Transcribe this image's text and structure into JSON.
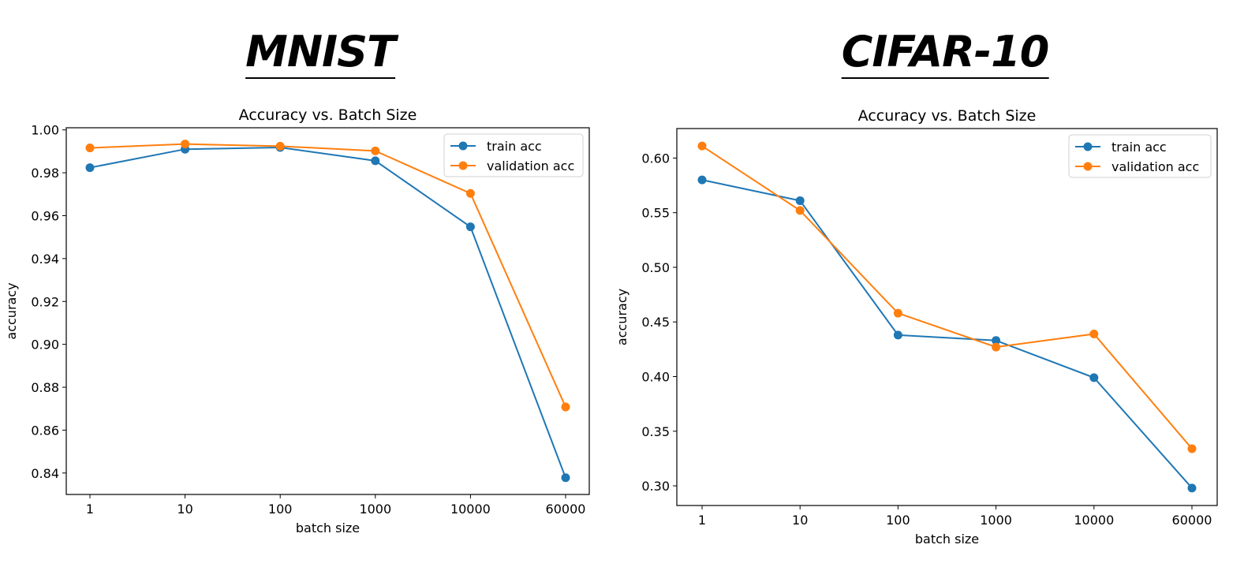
{
  "panel_titles": [
    "MNIST",
    "CIFAR-10"
  ],
  "colors": {
    "train": "#1f77b4",
    "validation": "#ff7f0e"
  },
  "chart_data": [
    {
      "type": "line",
      "title": "Accuracy vs. Batch Size",
      "xlabel": "batch size",
      "ylabel": "accuracy",
      "categories": [
        "1",
        "10",
        "100",
        "1000",
        "10000",
        "60000"
      ],
      "yticks": [
        "0.84",
        "0.86",
        "0.88",
        "0.90",
        "0.92",
        "0.94",
        "0.96",
        "0.98",
        "1.00"
      ],
      "ylim": [
        0.83,
        1.001
      ],
      "legend_position": "top-right",
      "grid": false,
      "series": [
        {
          "name": "train acc",
          "values": [
            0.9824,
            0.991,
            0.9918,
            0.9856,
            0.9548,
            0.8378
          ]
        },
        {
          "name": "validation acc",
          "values": [
            0.9916,
            0.9934,
            0.9924,
            0.9902,
            0.9704,
            0.8708
          ]
        }
      ]
    },
    {
      "type": "line",
      "title": "Accuracy vs. Batch Size",
      "xlabel": "batch size",
      "ylabel": "accuracy",
      "categories": [
        "1",
        "10",
        "100",
        "1000",
        "10000",
        "60000"
      ],
      "yticks": [
        "0.30",
        "0.35",
        "0.40",
        "0.45",
        "0.50",
        "0.55",
        "0.60"
      ],
      "ylim": [
        0.282,
        0.627
      ],
      "legend_position": "top-right",
      "grid": false,
      "series": [
        {
          "name": "train acc",
          "values": [
            0.58,
            0.561,
            0.438,
            0.433,
            0.399,
            0.298
          ]
        },
        {
          "name": "validation acc",
          "values": [
            0.611,
            0.552,
            0.458,
            0.427,
            0.439,
            0.334
          ]
        }
      ]
    }
  ]
}
